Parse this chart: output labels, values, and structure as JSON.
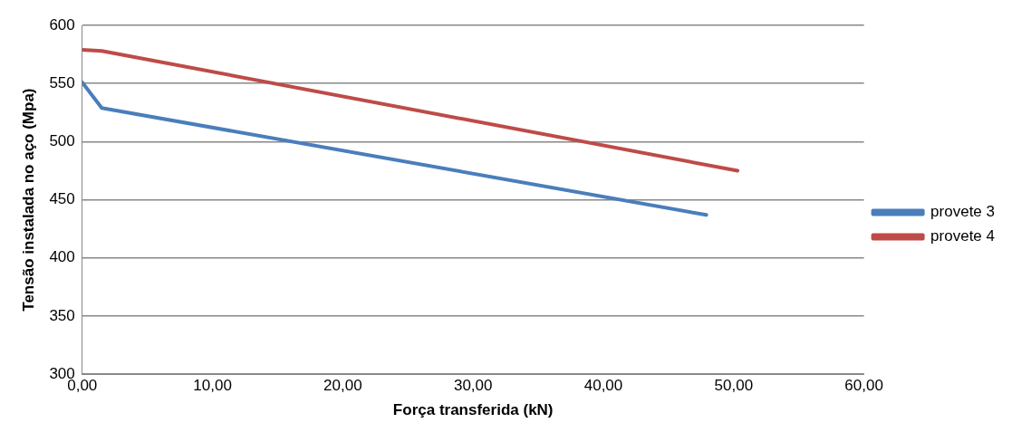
{
  "chart_data": {
    "type": "line",
    "xlabel": "Força transferida (kN)",
    "ylabel": "Tensão instalada no aço (Mpa)",
    "xlim": [
      0,
      60
    ],
    "xticks": [
      {
        "value": 0,
        "label": "0,00"
      },
      {
        "value": 10,
        "label": "10,00"
      },
      {
        "value": 20,
        "label": "20,00"
      },
      {
        "value": 30,
        "label": "30,00"
      },
      {
        "value": 40,
        "label": "40,00"
      },
      {
        "value": 50,
        "label": "50,00"
      },
      {
        "value": 60,
        "label": "60,00"
      }
    ],
    "ylim": [
      300,
      600
    ],
    "yticks": [
      300,
      350,
      400,
      450,
      500,
      550,
      600
    ],
    "grid": "y",
    "legend": "right",
    "marker": "none",
    "series": [
      {
        "name": "provete 3",
        "color": "#4a7ebb",
        "x": [
          0,
          1.5,
          47.9
        ],
        "values": [
          551,
          529,
          437
        ]
      },
      {
        "name": "provete 4",
        "color": "#be4b48",
        "x": [
          0,
          1.5,
          50.3
        ],
        "values": [
          579,
          578,
          475
        ]
      }
    ]
  }
}
